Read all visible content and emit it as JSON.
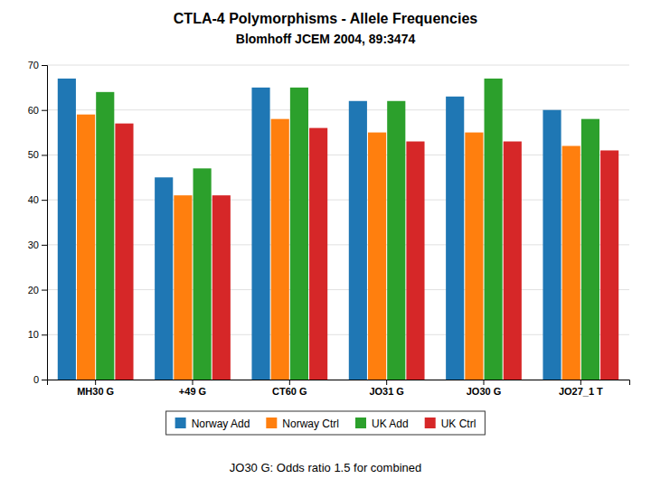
{
  "chart_data": {
    "type": "bar",
    "title": "CTLA-4 Polymorphisms - Allele Frequencies",
    "subtitle": "Blomhoff JCEM 2004, 89:3474",
    "annotations": [
      "JO30 G: Odds ratio 1.5 for combined"
    ],
    "categories": [
      "MH30 G",
      "+49 G",
      "CT60 G",
      "JO31 G",
      "JO30 G",
      "JO27_1 T"
    ],
    "series": [
      {
        "name": "Norway Add",
        "values": [
          67,
          45,
          65,
          62,
          63,
          60
        ]
      },
      {
        "name": "Norway Ctrl",
        "values": [
          59,
          41,
          58,
          55,
          55,
          52
        ]
      },
      {
        "name": "UK Add",
        "values": [
          64,
          47,
          65,
          62,
          67,
          58
        ]
      },
      {
        "name": "UK Ctrl",
        "values": [
          57,
          41,
          56,
          53,
          53,
          51
        ]
      }
    ],
    "ylim": [
      0,
      70
    ],
    "yticks": [
      0,
      10,
      20,
      30,
      40,
      50,
      60,
      70
    ],
    "grid": true,
    "legend": "bottom"
  }
}
